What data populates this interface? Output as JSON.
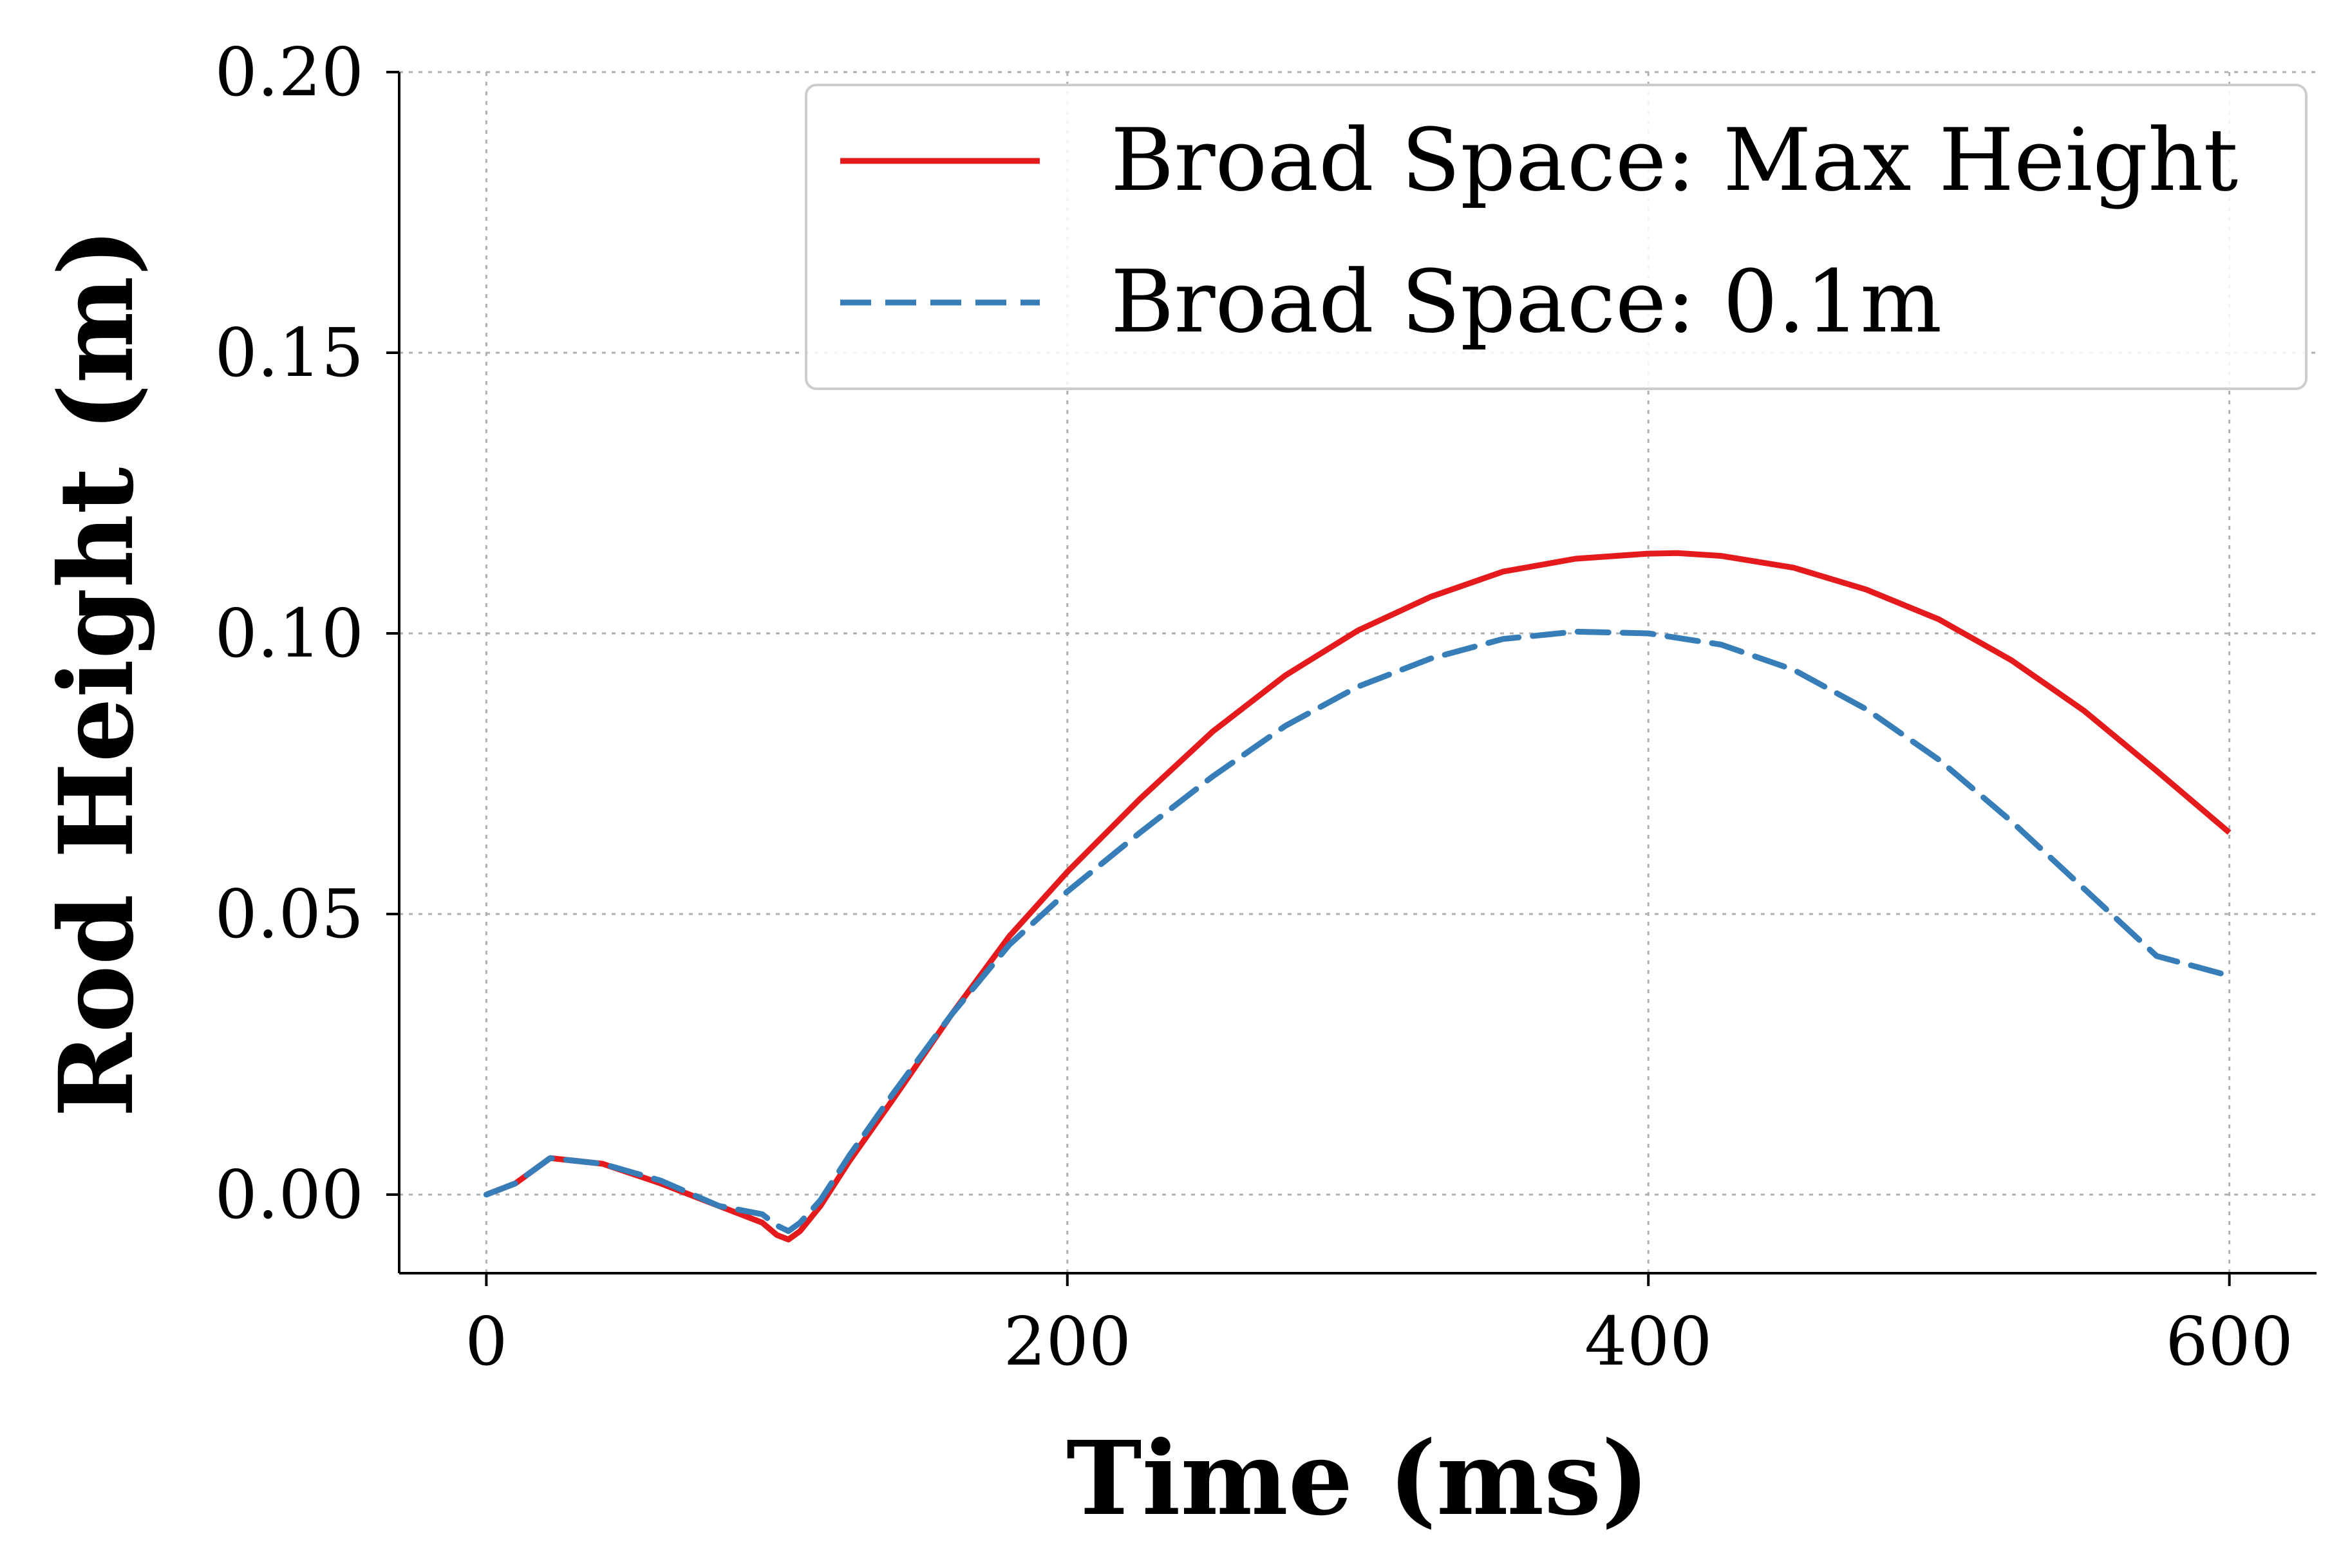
{
  "chart_data": {
    "type": "line",
    "xlabel": "Time (ms)",
    "ylabel": "Rod Height (m)",
    "xlim": [
      -30,
      630
    ],
    "ylim": [
      -0.014,
      0.2
    ],
    "xticks": [
      0,
      200,
      400,
      600
    ],
    "xtick_labels": [
      "0",
      "200",
      "400",
      "600"
    ],
    "yticks": [
      0.0,
      0.05,
      0.1,
      0.15,
      0.2
    ],
    "ytick_labels": [
      "0.00",
      "0.05",
      "0.10",
      "0.15",
      "0.20"
    ],
    "grid": true,
    "legend_position": "top-right",
    "series": [
      {
        "name": "Broad Space: Max Height",
        "color": "#e41a1c",
        "style": "solid",
        "x": [
          0,
          10,
          22,
          40,
          60,
          80,
          95,
          100,
          104,
          108,
          115,
          125,
          140,
          160,
          180,
          200,
          225,
          250,
          275,
          300,
          325,
          350,
          375,
          400,
          410,
          425,
          450,
          475,
          500,
          525,
          550,
          575,
          600
        ],
        "y": [
          0.0,
          0.002,
          0.0065,
          0.0055,
          0.002,
          -0.002,
          -0.005,
          -0.0072,
          -0.008,
          -0.0065,
          -0.002,
          0.006,
          0.017,
          0.032,
          0.046,
          0.0575,
          0.0705,
          0.0825,
          0.0925,
          0.1005,
          0.1065,
          0.111,
          0.1133,
          0.1142,
          0.1143,
          0.1138,
          0.1117,
          0.1078,
          0.1025,
          0.0952,
          0.0862,
          0.0755,
          0.0645
        ]
      },
      {
        "name": "Broad Space: 0.1m",
        "color": "#377eb8",
        "style": "dashed",
        "x": [
          0,
          10,
          22,
          40,
          60,
          80,
          95,
          100,
          104,
          108,
          115,
          125,
          140,
          160,
          180,
          200,
          225,
          250,
          275,
          300,
          325,
          350,
          375,
          400,
          425,
          450,
          475,
          500,
          525,
          550,
          575,
          600
        ],
        "y": [
          0.0,
          0.002,
          0.0065,
          0.0055,
          0.0025,
          -0.002,
          -0.0035,
          -0.0055,
          -0.0065,
          -0.005,
          -0.001,
          0.007,
          0.018,
          0.032,
          0.0445,
          0.054,
          0.0645,
          0.0745,
          0.0835,
          0.0905,
          0.0955,
          0.099,
          0.1003,
          0.1,
          0.098,
          0.0935,
          0.0865,
          0.0775,
          0.0665,
          0.0545,
          0.0425,
          0.039
        ]
      }
    ]
  }
}
